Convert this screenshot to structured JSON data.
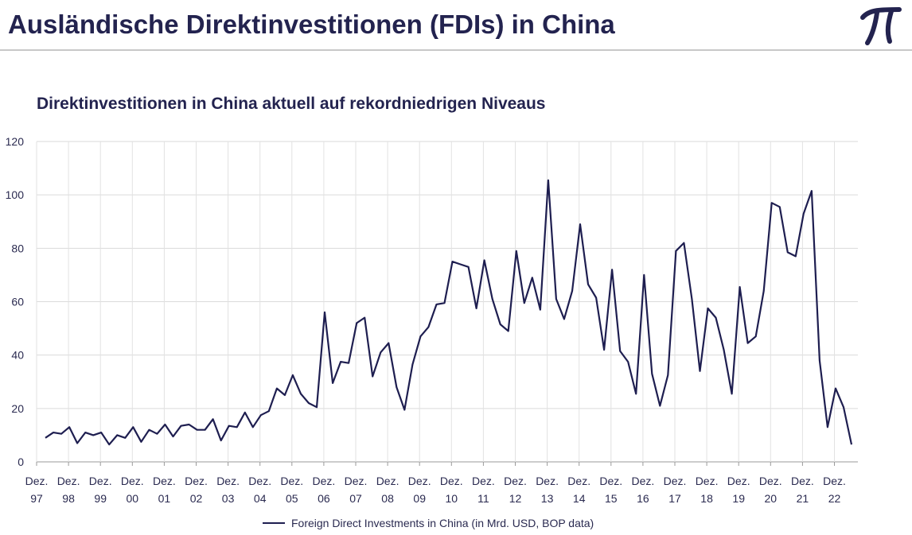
{
  "header": {
    "title": "Ausländische Direktinvestitionen (FDIs) in China",
    "logo_icon": "pi-icon"
  },
  "chart_data": {
    "type": "line",
    "title": "Direktinvestitionen in China aktuell auf rekordniedrigen Niveaus",
    "xlabel": "",
    "ylabel": "",
    "ylim": [
      0,
      120
    ],
    "yticks": [
      0,
      20,
      40,
      60,
      80,
      100,
      120
    ],
    "grid": true,
    "legend_position": "bottom",
    "line_color": "#1e1e50",
    "x_tick_labels": [
      [
        "Dez.",
        "97"
      ],
      [
        "Dez.",
        "98"
      ],
      [
        "Dez.",
        "99"
      ],
      [
        "Dez.",
        "00"
      ],
      [
        "Dez.",
        "01"
      ],
      [
        "Dez.",
        "02"
      ],
      [
        "Dez.",
        "03"
      ],
      [
        "Dez.",
        "04"
      ],
      [
        "Dez.",
        "05"
      ],
      [
        "Dez.",
        "06"
      ],
      [
        "Dez.",
        "07"
      ],
      [
        "Dez.",
        "08"
      ],
      [
        "Dez.",
        "09"
      ],
      [
        "Dez.",
        "10"
      ],
      [
        "Dez.",
        "11"
      ],
      [
        "Dez.",
        "12"
      ],
      [
        "Dez.",
        "13"
      ],
      [
        "Dez.",
        "14"
      ],
      [
        "Dez.",
        "15"
      ],
      [
        "Dez.",
        "16"
      ],
      [
        "Dez.",
        "17"
      ],
      [
        "Dez.",
        "18"
      ],
      [
        "Dez.",
        "19"
      ],
      [
        "Dez.",
        "20"
      ],
      [
        "Dez.",
        "21"
      ],
      [
        "Dez.",
        "22"
      ]
    ],
    "series": [
      {
        "name": "Foreign Direct Investments in China (in Mrd. USD, BOP data)",
        "values": [
          9,
          11,
          10.5,
          13,
          7,
          11,
          10,
          11,
          6.5,
          10,
          9,
          13,
          7.5,
          12,
          10.5,
          14,
          9.5,
          13.5,
          14,
          12,
          12,
          16,
          8,
          13.5,
          13,
          18.5,
          13,
          17.5,
          19,
          27.5,
          25,
          32.5,
          25.5,
          22,
          20.5,
          56,
          29.5,
          37.5,
          37,
          52,
          54,
          32,
          41,
          44.5,
          28,
          19.5,
          36.5,
          47,
          50.5,
          59,
          59.5,
          75,
          74,
          73,
          57.5,
          75.5,
          61,
          51.5,
          49,
          79,
          59.5,
          69,
          57,
          105.5,
          61,
          53.5,
          64,
          89,
          66.5,
          61.5,
          42,
          72,
          41.5,
          37.5,
          25.5,
          70,
          33,
          21,
          32.5,
          79,
          82,
          61,
          34,
          57.5,
          54,
          42,
          25.5,
          65.5,
          44.5,
          47,
          64,
          97,
          95.5,
          78.5,
          77,
          93,
          101.5,
          38,
          13,
          27.5,
          20.5,
          6.5
        ]
      }
    ]
  }
}
